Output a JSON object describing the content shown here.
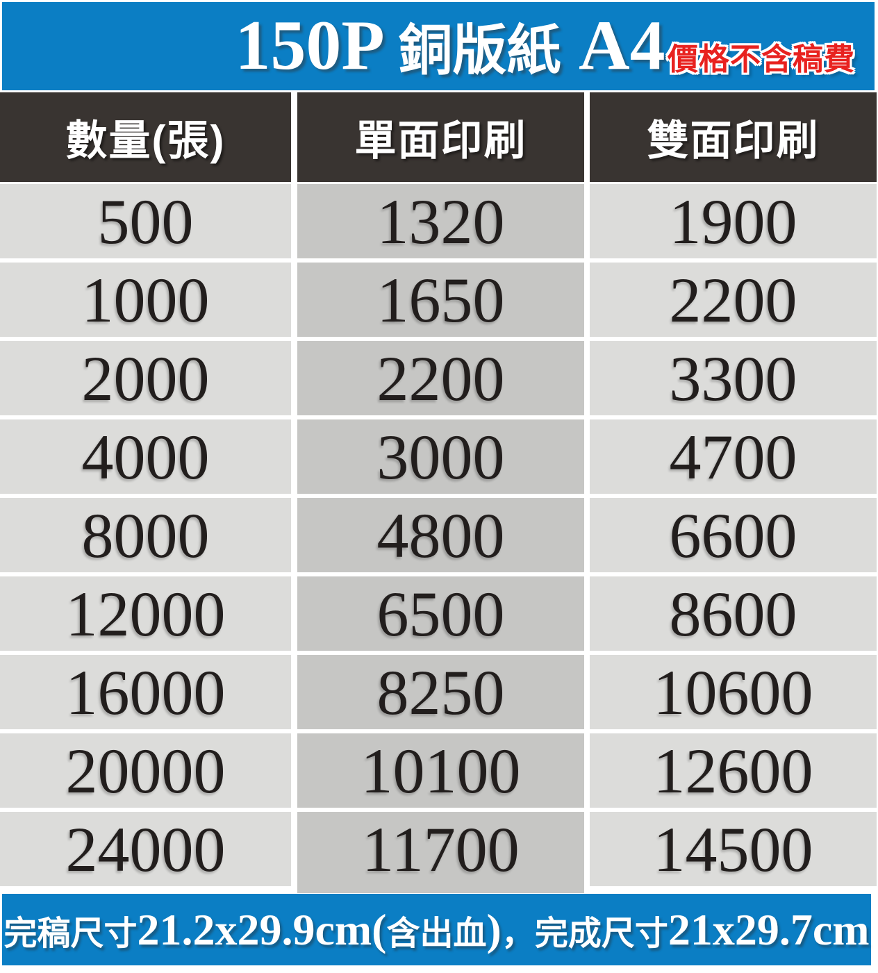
{
  "header": {
    "title_segments": [
      {
        "text": "150P ",
        "kind": "latin"
      },
      {
        "text": "銅版紙",
        "kind": "cjk"
      },
      {
        "text": " A4",
        "kind": "latin"
      }
    ],
    "note": "價格不含稿費"
  },
  "table": {
    "columns": [
      "數量(張)",
      "單面印刷",
      "雙面印刷"
    ],
    "rows": [
      [
        "500",
        "1320",
        "1900"
      ],
      [
        "1000",
        "1650",
        "2200"
      ],
      [
        "2000",
        "2200",
        "3300"
      ],
      [
        "4000",
        "3000",
        "4700"
      ],
      [
        "8000",
        "4800",
        "6600"
      ],
      [
        "12000",
        "6500",
        "8600"
      ],
      [
        "16000",
        "8250",
        "10600"
      ],
      [
        "20000",
        "10100",
        "12600"
      ],
      [
        "24000",
        "11700",
        "14500"
      ]
    ]
  },
  "footer": {
    "segments": [
      {
        "text": "完稿尺寸",
        "kind": "cjk"
      },
      {
        "text": "21.2x29.9cm(",
        "kind": "latin"
      },
      {
        "text": "含出血",
        "kind": "cjk"
      },
      {
        "text": ")",
        "kind": "latin"
      },
      {
        "text": "，完成尺寸",
        "kind": "cjk"
      },
      {
        "text": "21x29.7cm",
        "kind": "latin"
      }
    ]
  },
  "colors": {
    "band_blue": "#0b7ec4",
    "note_red": "#e8221f",
    "header_dark": "#393431",
    "cell_light": "#dcdcda",
    "cell_mid": "#c6c6c4",
    "number_ink": "#221e1d"
  }
}
